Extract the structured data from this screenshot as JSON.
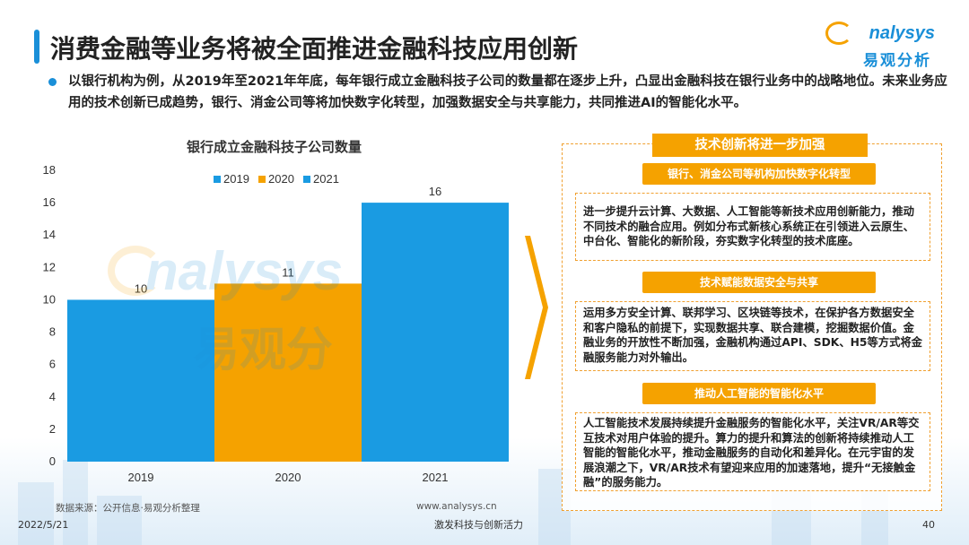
{
  "title": "消费金融等业务将被全面推进金融科技应用创新",
  "logo": {
    "word": "nalysys",
    "chinese": "易观分析"
  },
  "intro": "以银行机构为例，从2019年至2021年年底，每年银行成立金融科技子公司的数量都在逐步上升，凸显出金融科技在银行业务中的战略地位。未来业务应用的技术创新已成趋势，银行、消金公司等将加快数字化转型，加强数据安全与共享能力，共同推进AI的智能化水平。",
  "chart_data": {
    "type": "bar",
    "title": "银行成立金融科技子公司数量",
    "categories": [
      "2019",
      "2020",
      "2021"
    ],
    "values": [
      10,
      11,
      16
    ],
    "colors": [
      "#1a9be2",
      "#f5a200",
      "#1a9be2"
    ],
    "legend": [
      "2019",
      "2020",
      "2021"
    ],
    "legend_colors": [
      "#1a9be2",
      "#f5a200",
      "#1a9be2"
    ],
    "legend_position": "top",
    "ylim": [
      0,
      18
    ],
    "yticks": [
      "0",
      "2",
      "4",
      "6",
      "8",
      "10",
      "12",
      "14",
      "16",
      "18"
    ],
    "data_labels": [
      "10",
      "11",
      "16"
    ],
    "grid": false
  },
  "watermark": {
    "en": "nalysys",
    "zh": "易观分"
  },
  "panel": {
    "header": "技术创新将进一步加强",
    "sections": [
      {
        "heading": "银行、消金公司等机构加快数字化转型",
        "text": "进一步提升云计算、大数据、人工智能等新技术应用创新能力，推动不同技术的融合应用。例如分布式新核心系统正在引领进入云原生、中台化、智能化的新阶段，夯实数字化转型的技术底座。"
      },
      {
        "heading": "技术赋能数据安全与共享",
        "text": "运用多方安全计算、联邦学习、区块链等技术，在保护各方数据安全和客户隐私的前提下，实现数据共享、联合建模，挖掘数据价值。金融业务的开放性不断加强，金融机构通过API、SDK、H5等方式将金融服务能力对外输出。"
      },
      {
        "heading": "推动人工智能的智能化水平",
        "text": "人工智能技术发展持续提升金融服务的智能化水平，关注VR/AR等交互技术对用户体验的提升。算力的提升和算法的创新将持续推动人工智能的智能化水平，推动金融服务的自动化和差异化。在元宇宙的发展浪潮之下，VR/AR技术有望迎来应用的加速落地，提升“无接触金融”的服务能力。"
      }
    ]
  },
  "footer": {
    "source": "数据来源：公开信息·易观分析整理",
    "website": "www.analysys.cn",
    "date": "2022/5/21",
    "slogan": "激发科技与创新活力",
    "page": "40"
  }
}
